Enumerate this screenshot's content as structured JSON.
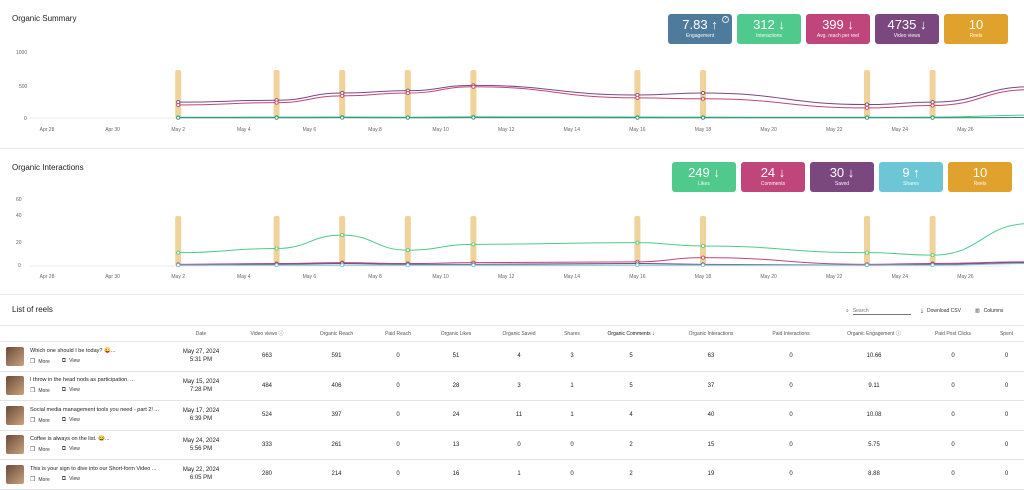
{
  "summary": {
    "title": "Organic Summary",
    "cards": [
      {
        "value": "7.83",
        "arrow": "↑",
        "label": "Engagement",
        "color": "#4e7b9c",
        "info": "?"
      },
      {
        "value": "312",
        "arrow": "↓",
        "label": "Interactions",
        "color": "#4fc98c",
        "info": ""
      },
      {
        "value": "399",
        "arrow": "↓",
        "label": "Avg. reach per reel",
        "color": "#c0457a",
        "info": ""
      },
      {
        "value": "4735",
        "arrow": "↓",
        "label": "Video views",
        "color": "#7b477f",
        "info": ""
      },
      {
        "value": "10",
        "arrow": "",
        "label": "Reels",
        "color": "#e0a22c",
        "info": ""
      }
    ],
    "chart": {
      "yticks": [
        "1000",
        "500",
        "0"
      ],
      "xticks": [
        "Apr 28",
        "Apr 30",
        "May 2",
        "May 4",
        "May 6",
        "May 8",
        "May 10",
        "May 12",
        "May 14",
        "May 16",
        "May 18",
        "May 20",
        "May 22",
        "May 24",
        "May 26"
      ]
    }
  },
  "interactions": {
    "title": "Organic Interactions",
    "cards": [
      {
        "value": "249",
        "arrow": "↓",
        "label": "Likes",
        "color": "#4fc98c"
      },
      {
        "value": "24",
        "arrow": "↓",
        "label": "Comments",
        "color": "#c0457a"
      },
      {
        "value": "30",
        "arrow": "↓",
        "label": "Saved",
        "color": "#7b477f"
      },
      {
        "value": "9",
        "arrow": "↑",
        "label": "Shares",
        "color": "#6cc6d6"
      },
      {
        "value": "10",
        "arrow": "",
        "label": "Reels",
        "color": "#e0a22c"
      }
    ],
    "chart": {
      "yticks": [
        "60",
        "40",
        "20",
        "0"
      ],
      "xticks": [
        "Apr 28",
        "Apr 30",
        "May 2",
        "May 4",
        "May 6",
        "May 8",
        "May 10",
        "May 12",
        "May 14",
        "May 16",
        "May 18",
        "May 20",
        "May 22",
        "May 24",
        "May 26"
      ]
    }
  },
  "chart_data": [
    {
      "type": "line",
      "xticks": [
        "Apr 28",
        "Apr 30",
        "May 2",
        "May 4",
        "May 6",
        "May 8",
        "May 10",
        "May 12",
        "May 14",
        "May 16",
        "May 18",
        "May 20",
        "May 22",
        "May 24",
        "May 26"
      ],
      "ylim": [
        0,
        1000
      ],
      "reel_days": [
        "May 1",
        "May 4",
        "May 6",
        "May 8",
        "May 10",
        "May 15",
        "May 17",
        "May 22",
        "May 24",
        "May 27"
      ],
      "series": [
        {
          "color": "#7b477f",
          "values": [
            330,
            370,
            520,
            570,
            680,
            480,
            520,
            280,
            330,
            650
          ]
        },
        {
          "color": "#c0457a",
          "values": [
            270,
            320,
            460,
            520,
            650,
            420,
            400,
            210,
            260,
            590
          ]
        },
        {
          "color": "#4fc98c",
          "values": [
            15,
            18,
            20,
            16,
            25,
            20,
            18,
            15,
            18,
            60
          ]
        },
        {
          "color": "#2f8a7a",
          "values": [
            5,
            6,
            7,
            5,
            8,
            6,
            6,
            5,
            6,
            10
          ]
        }
      ]
    },
    {
      "type": "line",
      "xticks": [
        "Apr 28",
        "Apr 30",
        "May 2",
        "May 4",
        "May 6",
        "May 8",
        "May 10",
        "May 12",
        "May 14",
        "May 16",
        "May 18",
        "May 20",
        "May 22",
        "May 24",
        "May 26"
      ],
      "ylim": [
        0,
        60
      ],
      "reel_days": [
        "May 1",
        "May 4",
        "May 6",
        "May 8",
        "May 10",
        "May 15",
        "May 17",
        "May 22",
        "May 24",
        "May 27"
      ],
      "series": [
        {
          "color": "#4fc98c",
          "values": [
            16,
            21,
            37,
            19,
            26,
            28,
            24,
            16,
            13,
            51
          ]
        },
        {
          "color": "#c0457a",
          "values": [
            2,
            3,
            4,
            3,
            4,
            5,
            10,
            2,
            3,
            5
          ]
        },
        {
          "color": "#7b477f",
          "values": [
            1,
            2,
            3,
            2,
            2,
            3,
            2,
            1,
            2,
            4
          ]
        },
        {
          "color": "#6cc6d6",
          "values": [
            1,
            1,
            1,
            1,
            1,
            1,
            1,
            1,
            1,
            3
          ]
        }
      ]
    }
  ],
  "list": {
    "title": "List of reels",
    "search_placeholder": "Search",
    "download_label": "Download CSV",
    "columns_label": "Columns",
    "headers": [
      "",
      "Date",
      "Video views ⓘ",
      "Organic Reach",
      "Paid Reach",
      "Organic Likes",
      "Organic Saved",
      "Shares",
      "Organic Comments",
      "Organic Interactions",
      "Paid Interactions",
      "Organic Engagement ⓘ",
      "Paid Post Clicks",
      "Spent"
    ],
    "more_label": "More",
    "view_label": "View",
    "rows": [
      {
        "title": "Which one should I be today? 😜...",
        "date": "May 27, 2024",
        "time": "5:31 PM",
        "cells": [
          "663",
          "591",
          "0",
          "51",
          "4",
          "3",
          "5",
          "63",
          "0",
          "10.66",
          "0",
          "0"
        ]
      },
      {
        "title": "I throw in the head nods as participation. ...",
        "date": "May 15, 2024",
        "time": "7:28 PM",
        "cells": [
          "484",
          "406",
          "0",
          "28",
          "3",
          "1",
          "5",
          "37",
          "0",
          "9.11",
          "0",
          "0"
        ]
      },
      {
        "title": "Social media management tools you need - part 2! ...",
        "date": "May 17, 2024",
        "time": "6:39 PM",
        "cells": [
          "524",
          "397",
          "0",
          "24",
          "11",
          "1",
          "4",
          "40",
          "0",
          "10.08",
          "0",
          "0"
        ]
      },
      {
        "title": "Coffee is always on the list. 😂...",
        "date": "May 24, 2024",
        "time": "5:56 PM",
        "cells": [
          "333",
          "261",
          "0",
          "13",
          "0",
          "0",
          "2",
          "15",
          "0",
          "5.75",
          "0",
          "0"
        ]
      },
      {
        "title": "This is your sign to dive into our Short-form Video ...",
        "date": "May 22, 2024",
        "time": "6:05 PM",
        "cells": [
          "280",
          "214",
          "0",
          "16",
          "1",
          "0",
          "2",
          "19",
          "0",
          "8.88",
          "0",
          "0"
        ]
      }
    ]
  }
}
